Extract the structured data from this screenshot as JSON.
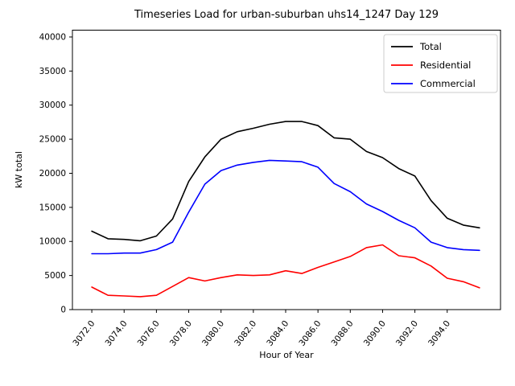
{
  "figure": {
    "background": "#ffffff",
    "spine_color": "#000000"
  },
  "chart_data": {
    "type": "line",
    "title": "Timeseries Load for urban-suburban uhs14_1247  Day 129",
    "xlabel": "Hour of Year",
    "ylabel": "kW total",
    "grid": false,
    "legend_position": "upper right",
    "legend_border_color": "#cccccc",
    "xlim": [
      3070.8,
      3097.3
    ],
    "ylim": [
      0,
      41000
    ],
    "x": [
      3072,
      3073,
      3074,
      3075,
      3076,
      3077,
      3078,
      3079,
      3080,
      3081,
      3082,
      3083,
      3084,
      3085,
      3086,
      3087,
      3088,
      3089,
      3090,
      3091,
      3092,
      3093,
      3094,
      3095,
      3096
    ],
    "series": [
      {
        "name": "Total",
        "color": "#000000",
        "values": [
          11500,
          10400,
          10300,
          10100,
          10800,
          13300,
          18800,
          22400,
          25000,
          26100,
          26600,
          27200,
          27600,
          27600,
          27000,
          25200,
          25000,
          23200,
          22300,
          20700,
          19600,
          16000,
          13400,
          12400,
          12000
        ]
      },
      {
        "name": "Residential",
        "color": "#ff0000",
        "values": [
          3300,
          2100,
          2000,
          1900,
          2100,
          3400,
          4700,
          4200,
          4700,
          5100,
          5000,
          5100,
          5700,
          5300,
          6200,
          7000,
          7800,
          9100,
          9500,
          7900,
          7600,
          6400,
          4600,
          4100,
          3200
        ]
      },
      {
        "name": "Commercial",
        "color": "#0000ff",
        "values": [
          8200,
          8200,
          8300,
          8300,
          8800,
          9900,
          14300,
          18400,
          20400,
          21200,
          21600,
          21900,
          21800,
          21700,
          20900,
          18500,
          17300,
          15500,
          14400,
          13100,
          12000,
          9900,
          9100,
          8800,
          8700
        ]
      }
    ],
    "xticks": {
      "values": [
        3072,
        3074,
        3076,
        3078,
        3080,
        3082,
        3084,
        3086,
        3088,
        3090,
        3092,
        3094
      ],
      "labels": [
        "3072.0",
        "3074.0",
        "3076.0",
        "3078.0",
        "3080.0",
        "3082.0",
        "3084.0",
        "3086.0",
        "3088.0",
        "3090.0",
        "3092.0",
        "3094.0"
      ],
      "rotation_deg": -52
    },
    "yticks": {
      "values": [
        0,
        5000,
        10000,
        15000,
        20000,
        25000,
        30000,
        35000,
        40000
      ],
      "labels": [
        "0",
        "5000",
        "10000",
        "15000",
        "20000",
        "25000",
        "30000",
        "35000",
        "40000"
      ]
    }
  }
}
